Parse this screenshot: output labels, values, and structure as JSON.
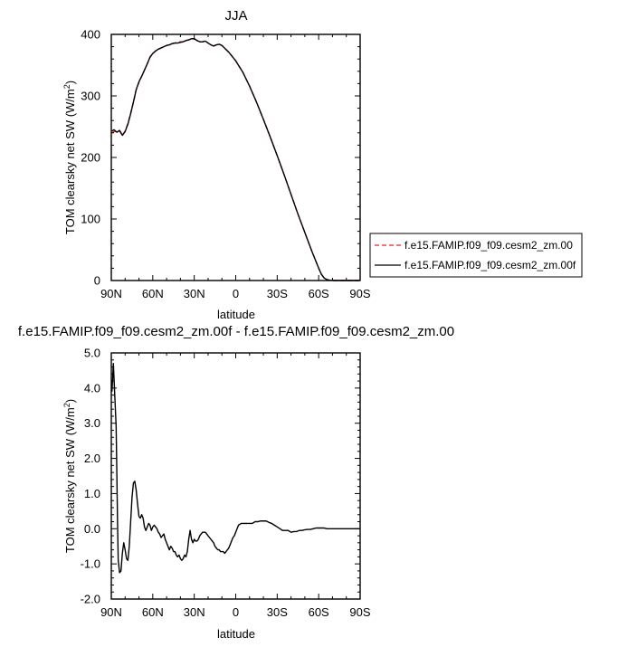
{
  "chart_data": [
    {
      "type": "line",
      "title": "JJA",
      "xlabel": "latitude",
      "ylabel": "TOM clearsky net SW (W/m",
      "ylabel_sup": "2",
      "ylabel_tail": ")",
      "xlim": [
        90,
        -90
      ],
      "ylim": [
        0,
        400
      ],
      "x_ticks": [
        90,
        60,
        30,
        0,
        -30,
        -60,
        -90
      ],
      "x_tick_labels": [
        "90N",
        "60N",
        "30N",
        "0",
        "30S",
        "60S",
        "90S"
      ],
      "y_ticks": [
        0,
        100,
        200,
        300,
        400
      ],
      "y_tick_labels": [
        "0",
        "100",
        "200",
        "300",
        "400"
      ],
      "grid": false,
      "legend_placement": "right",
      "series": [
        {
          "name": "f.e15.FAMIP.f09_f09.cesm2_zm.00",
          "color": "#e8202a",
          "dash": "dashed",
          "x": [
            89.5,
            88,
            86,
            84,
            82,
            80,
            78,
            76,
            74,
            72,
            70,
            68,
            66,
            64,
            62,
            60,
            58,
            56,
            54,
            52,
            50,
            48,
            46,
            44,
            42,
            40,
            38,
            36,
            34,
            32,
            30,
            28,
            26,
            24,
            22,
            20,
            18,
            16,
            14,
            12,
            10,
            5,
            0,
            -5,
            -10,
            -15,
            -20,
            -25,
            -30,
            -35,
            -40,
            -45,
            -50,
            -55,
            -60,
            -62,
            -64,
            -66,
            -68,
            -70,
            -72,
            -75,
            -80,
            -85,
            -89.5
          ],
          "y": [
            240,
            242,
            242,
            243,
            236,
            243,
            255,
            272,
            290,
            310,
            322,
            332,
            342,
            352,
            363,
            369,
            373,
            376,
            378,
            380,
            382,
            383,
            385,
            386,
            387,
            388,
            388,
            390,
            391,
            393,
            393,
            390,
            388,
            388,
            389,
            386,
            383,
            381,
            383,
            384,
            382,
            371,
            357,
            339,
            316,
            290,
            262,
            233,
            203,
            172,
            140,
            108,
            78,
            48,
            20,
            10,
            4,
            1.5,
            0.5,
            0.2,
            0,
            0,
            0,
            0,
            0
          ]
        },
        {
          "name": "f.e15.FAMIP.f09_f09.cesm2_zm.00f",
          "color": "#000000",
          "dash": "solid",
          "x": [
            89.5,
            88,
            86,
            84,
            82,
            80,
            78,
            76,
            74,
            72,
            70,
            68,
            66,
            64,
            62,
            60,
            58,
            56,
            54,
            52,
            50,
            48,
            46,
            44,
            42,
            40,
            38,
            36,
            34,
            32,
            30,
            28,
            26,
            24,
            22,
            20,
            18,
            16,
            14,
            12,
            10,
            5,
            0,
            -5,
            -10,
            -15,
            -20,
            -25,
            -30,
            -35,
            -40,
            -45,
            -50,
            -55,
            -60,
            -62,
            -64,
            -66,
            -68,
            -70,
            -72,
            -75,
            -80,
            -85,
            -89.5
          ],
          "y": [
            243,
            245,
            241,
            244,
            236,
            242,
            254,
            271,
            290,
            310,
            323,
            332,
            342,
            352,
            363,
            369,
            373,
            376,
            378,
            380,
            382,
            383,
            385,
            386,
            386,
            387,
            388,
            390,
            391,
            393,
            393,
            390,
            388,
            388,
            389,
            386,
            383,
            381,
            383,
            384,
            382,
            371,
            357,
            339,
            316,
            290,
            262,
            233,
            203,
            172,
            140,
            108,
            78,
            48,
            20,
            10,
            4,
            1.5,
            0.5,
            0.2,
            0,
            0,
            0,
            0,
            0
          ]
        }
      ]
    },
    {
      "type": "line",
      "title": "f.e15.FAMIP.f09_f09.cesm2_zm.00f - f.e15.FAMIP.f09_f09.cesm2_zm.00",
      "xlabel": "latitude",
      "ylabel": "TOM clearsky net SW (W/m",
      "ylabel_sup": "2",
      "ylabel_tail": ")",
      "xlim": [
        90,
        -90
      ],
      "ylim": [
        -2.0,
        5.0
      ],
      "x_ticks": [
        90,
        60,
        30,
        0,
        -30,
        -60,
        -90
      ],
      "x_tick_labels": [
        "90N",
        "60N",
        "30N",
        "0",
        "30S",
        "60S",
        "90S"
      ],
      "y_ticks": [
        -2.0,
        -1.0,
        0.0,
        1.0,
        2.0,
        3.0,
        4.0,
        5.0
      ],
      "y_tick_labels": [
        "-2.0",
        "-1.0",
        "0.0",
        "1.0",
        "2.0",
        "3.0",
        "4.0",
        "5.0"
      ],
      "grid": false,
      "series": [
        {
          "color": "#000000",
          "dash": "solid",
          "x": [
            89.5,
            88.5,
            87.5,
            86.5,
            86,
            85.5,
            85,
            84,
            83,
            82,
            81,
            80,
            79,
            78,
            77,
            76,
            75,
            74,
            73,
            72,
            71,
            70,
            69,
            68,
            67,
            66,
            65,
            64,
            63,
            62,
            61,
            60,
            59,
            58,
            57,
            56,
            55,
            54,
            53,
            52,
            51,
            50,
            49,
            48,
            47,
            46,
            45,
            44,
            43,
            42,
            41,
            40,
            39,
            38,
            37,
            36,
            35,
            34,
            33,
            32,
            31,
            30,
            29,
            28,
            27,
            26,
            25,
            24,
            23,
            22,
            21,
            20,
            19,
            18,
            17,
            16,
            15,
            14,
            13,
            12,
            11,
            10,
            9,
            8,
            7,
            6,
            5,
            4,
            3,
            2,
            1,
            0,
            -2,
            -4,
            -6,
            -8,
            -10,
            -12,
            -14,
            -16,
            -18,
            -20,
            -22,
            -24,
            -26,
            -28,
            -30,
            -32,
            -34,
            -36,
            -38,
            -40,
            -42,
            -44,
            -46,
            -48,
            -50,
            -52,
            -54,
            -56,
            -58,
            -60,
            -62,
            -64,
            -66,
            -68,
            -70,
            -75,
            -80,
            -85,
            -89.5
          ],
          "y": [
            3.9,
            4.7,
            3.8,
            2.9,
            1.6,
            0.2,
            -0.9,
            -1.25,
            -1.2,
            -0.7,
            -0.4,
            -0.6,
            -0.85,
            -0.9,
            -0.5,
            0.2,
            0.9,
            1.3,
            1.35,
            1.1,
            0.7,
            0.35,
            0.3,
            0.4,
            0.3,
            0.05,
            -0.05,
            0.05,
            0.15,
            0.1,
            -0.05,
            0.05,
            0.1,
            0.05,
            0.0,
            -0.1,
            -0.15,
            -0.25,
            -0.2,
            -0.15,
            -0.3,
            -0.4,
            -0.5,
            -0.6,
            -0.5,
            -0.55,
            -0.65,
            -0.65,
            -0.75,
            -0.8,
            -0.75,
            -0.85,
            -0.9,
            -0.85,
            -0.75,
            -0.8,
            -0.65,
            -0.3,
            -0.05,
            -0.3,
            -0.4,
            -0.3,
            -0.35,
            -0.35,
            -0.3,
            -0.2,
            -0.15,
            -0.1,
            -0.1,
            -0.1,
            -0.15,
            -0.2,
            -0.25,
            -0.3,
            -0.35,
            -0.4,
            -0.5,
            -0.55,
            -0.6,
            -0.6,
            -0.65,
            -0.65,
            -0.65,
            -0.7,
            -0.65,
            -0.6,
            -0.55,
            -0.45,
            -0.35,
            -0.25,
            -0.2,
            -0.1,
            0.1,
            0.15,
            0.15,
            0.15,
            0.15,
            0.15,
            0.2,
            0.2,
            0.22,
            0.22,
            0.22,
            0.18,
            0.15,
            0.1,
            0.05,
            0.0,
            -0.05,
            -0.05,
            -0.05,
            -0.1,
            -0.08,
            -0.08,
            -0.05,
            -0.05,
            -0.03,
            -0.02,
            -0.02,
            0.0,
            0.02,
            0.02,
            0.02,
            0.02,
            0.0,
            0.0,
            0.0,
            0.0,
            0.0,
            0.0,
            0.0
          ]
        }
      ]
    }
  ]
}
